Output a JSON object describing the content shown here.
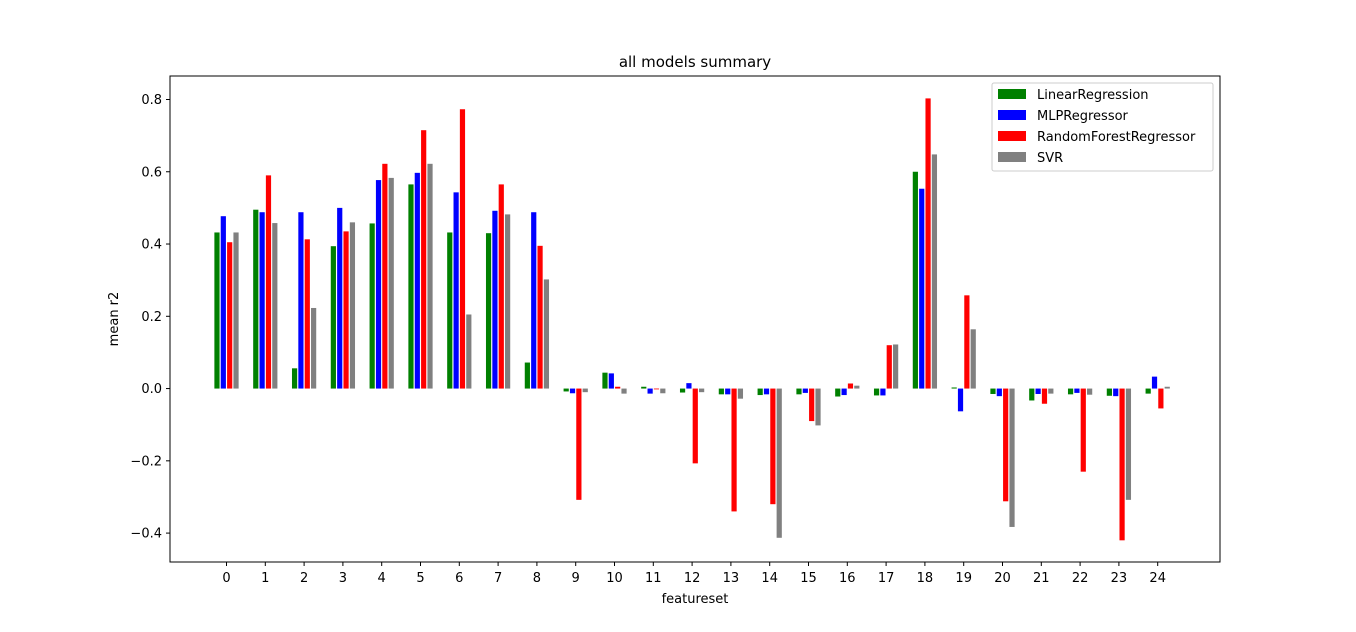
{
  "chart_data": {
    "type": "bar",
    "title": "all models summary",
    "xlabel": "featureset",
    "ylabel": "mean r2",
    "categories": [
      "0",
      "1",
      "2",
      "3",
      "4",
      "5",
      "6",
      "7",
      "8",
      "9",
      "10",
      "11",
      "12",
      "13",
      "14",
      "15",
      "16",
      "17",
      "18",
      "19",
      "20",
      "21",
      "22",
      "23",
      "24"
    ],
    "ylim": [
      -0.48,
      0.865
    ],
    "yticks": [
      -0.4,
      -0.2,
      0.0,
      0.2,
      0.4,
      0.6,
      0.8
    ],
    "ytick_labels": [
      "−0.4",
      "−0.2",
      "0.0",
      "0.2",
      "0.4",
      "0.6",
      "0.8"
    ],
    "grid": false,
    "legend_position": "top-right",
    "series": [
      {
        "name": "LinearRegression",
        "color": "#008000",
        "values": [
          0.432,
          0.495,
          0.056,
          0.394,
          0.457,
          0.565,
          0.432,
          0.43,
          0.072,
          -0.008,
          0.044,
          0.005,
          -0.011,
          -0.016,
          -0.018,
          -0.016,
          -0.022,
          -0.019,
          0.6,
          0.003,
          -0.015,
          -0.033,
          -0.016,
          -0.02,
          -0.014
        ]
      },
      {
        "name": "MLPRegressor",
        "color": "#0000ff",
        "values": [
          0.477,
          0.488,
          0.488,
          0.5,
          0.577,
          0.597,
          0.543,
          0.492,
          0.488,
          -0.013,
          0.042,
          -0.014,
          0.015,
          -0.016,
          -0.016,
          -0.012,
          -0.018,
          -0.019,
          0.553,
          -0.063,
          -0.021,
          -0.015,
          -0.012,
          -0.021,
          0.033
        ]
      },
      {
        "name": "RandomForestRegressor",
        "color": "#ff0000",
        "values": [
          0.405,
          0.59,
          0.413,
          0.435,
          0.622,
          0.715,
          0.773,
          0.565,
          0.395,
          -0.308,
          0.005,
          -0.002,
          -0.207,
          -0.34,
          -0.32,
          -0.09,
          0.014,
          0.12,
          0.803,
          0.258,
          -0.312,
          -0.042,
          -0.23,
          -0.42,
          -0.055
        ]
      },
      {
        "name": "SVR",
        "color": "#808080",
        "values": [
          0.432,
          0.458,
          0.223,
          0.46,
          0.583,
          0.622,
          0.205,
          0.482,
          0.302,
          -0.01,
          -0.014,
          -0.013,
          -0.01,
          -0.028,
          -0.413,
          -0.102,
          0.008,
          0.122,
          0.648,
          0.164,
          -0.383,
          -0.014,
          -0.017,
          -0.308,
          0.005
        ]
      }
    ]
  }
}
